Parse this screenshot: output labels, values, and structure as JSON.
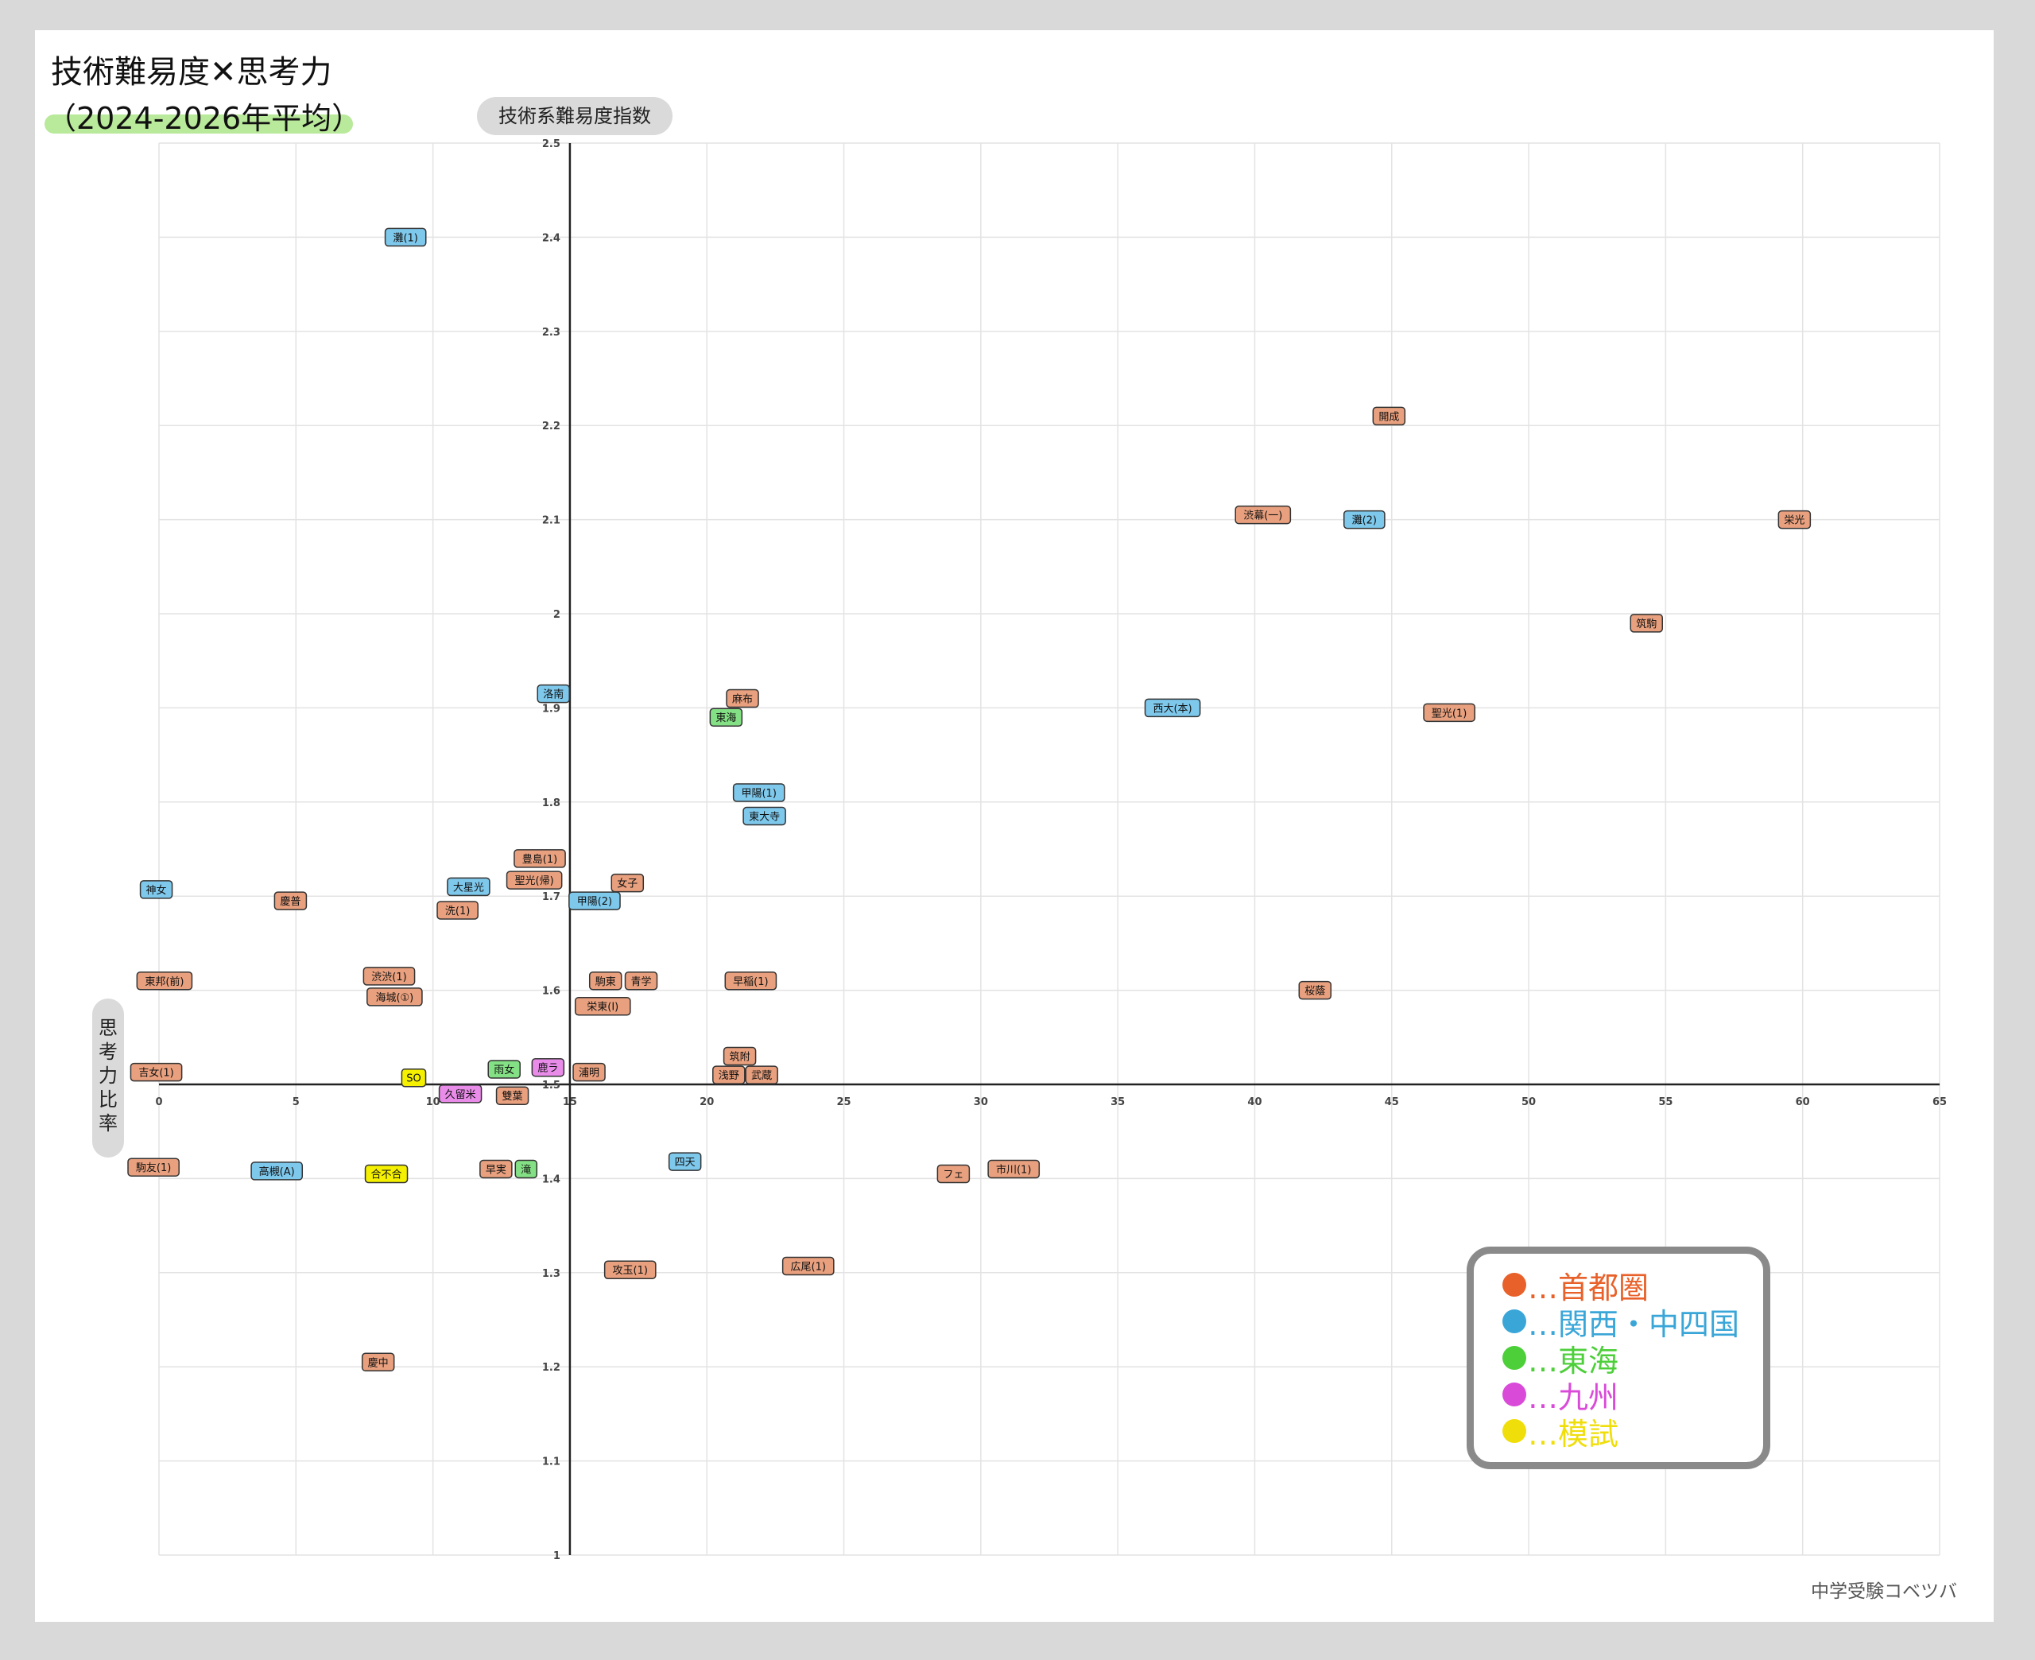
{
  "title": "技術難易度✕思考力",
  "subtitle": "（2024-2026年平均）",
  "watermark": "中学受験コベツバ",
  "colors": {
    "首都圏": "#e8a07e",
    "関西・中四国": "#7ec8ec",
    "東海": "#84e084",
    "九州": "#e98ce9",
    "模試": "#f5f000"
  },
  "legend": [
    {
      "label": "…首都圏",
      "dot": "#e8612a",
      "text": "#e8612a"
    },
    {
      "label": "…関西・中四国",
      "dot": "#3aa6d8",
      "text": "#3aa6d8"
    },
    {
      "label": "…東海",
      "dot": "#4dcf3a",
      "text": "#4dcf3a"
    },
    {
      "label": "…九州",
      "dot": "#d94ad9",
      "text": "#d94ad9"
    },
    {
      "label": "…模試",
      "dot": "#f0de0a",
      "text": "#f0de0a"
    }
  ],
  "chart_data": {
    "type": "scatter",
    "title": "技術難易度✕思考力",
    "subtitle": "（2024-2026年平均）",
    "xlabel": "技術系難易度指数",
    "ylabel": "思考力比率",
    "xlim": [
      0,
      65
    ],
    "ylim": [
      1,
      2.5
    ],
    "x_ticks": [
      0,
      5,
      10,
      15,
      20,
      25,
      30,
      35,
      40,
      45,
      50,
      55,
      60,
      65
    ],
    "y_ticks": [
      1,
      1.1,
      1.2,
      1.3,
      1.4,
      1.5,
      1.6,
      1.7,
      1.8,
      1.9,
      2,
      2.1,
      2.2,
      2.3,
      2.4,
      2.5
    ],
    "x_tick_labels": [
      "0",
      "5",
      "10",
      "15",
      "20",
      "25",
      "30",
      "35",
      "40",
      "45",
      "50",
      "55",
      "60",
      "65"
    ],
    "y_tick_labels": [
      "1",
      "1.1",
      "1.2",
      "1.3",
      "1.4",
      "1.5",
      "1.6",
      "1.7",
      "1.8",
      "1.9",
      "2",
      "2.1",
      "2.2",
      "2.3",
      "2.4",
      "2.5"
    ],
    "axis_cross": {
      "x": 15,
      "y": 1.5
    },
    "grid": true,
    "legend_position": "bottom-right",
    "points": [
      {
        "label": "灘(1)",
        "x": 9.0,
        "y": 2.4,
        "region": "関西・中四国"
      },
      {
        "label": "開成",
        "x": 44.9,
        "y": 2.21,
        "region": "首都圏"
      },
      {
        "label": "渋幕(一)",
        "x": 40.3,
        "y": 2.105,
        "region": "首都圏"
      },
      {
        "label": "灘(2)",
        "x": 44.0,
        "y": 2.1,
        "region": "関西・中四国"
      },
      {
        "label": "栄光",
        "x": 59.7,
        "y": 2.1,
        "region": "首都圏"
      },
      {
        "label": "筑駒",
        "x": 54.3,
        "y": 1.99,
        "region": "首都圏"
      },
      {
        "label": "洛南",
        "x": 14.4,
        "y": 1.915,
        "region": "関西・中四国"
      },
      {
        "label": "麻布",
        "x": 21.3,
        "y": 1.91,
        "region": "首都圏"
      },
      {
        "label": "東海",
        "x": 20.7,
        "y": 1.89,
        "region": "東海"
      },
      {
        "label": "西大(本)",
        "x": 37.0,
        "y": 1.9,
        "region": "関西・中四国"
      },
      {
        "label": "聖光(1)",
        "x": 47.1,
        "y": 1.895,
        "region": "首都圏"
      },
      {
        "label": "甲陽(1)",
        "x": 21.9,
        "y": 1.81,
        "region": "関西・中四国"
      },
      {
        "label": "東大寺",
        "x": 22.1,
        "y": 1.785,
        "region": "関西・中四国"
      },
      {
        "label": "豊島(1)",
        "x": 13.9,
        "y": 1.74,
        "region": "首都圏"
      },
      {
        "label": "聖光(帰)",
        "x": 13.7,
        "y": 1.717,
        "region": "首都圏"
      },
      {
        "label": "女子",
        "x": 17.1,
        "y": 1.714,
        "region": "首都圏"
      },
      {
        "label": "神女",
        "x": -0.1,
        "y": 1.707,
        "region": "関西・中四国"
      },
      {
        "label": "大星光",
        "x": 11.3,
        "y": 1.71,
        "region": "関西・中四国"
      },
      {
        "label": "慶普",
        "x": 4.8,
        "y": 1.695,
        "region": "首都圏"
      },
      {
        "label": "甲陽(2)",
        "x": 15.9,
        "y": 1.695,
        "region": "関西・中四国"
      },
      {
        "label": "洗(1)",
        "x": 10.9,
        "y": 1.685,
        "region": "首都圏"
      },
      {
        "label": "東邦(前)",
        "x": 0.2,
        "y": 1.61,
        "region": "首都圏"
      },
      {
        "label": "渋渋(1)",
        "x": 8.4,
        "y": 1.615,
        "region": "首都圏"
      },
      {
        "label": "駒東",
        "x": 16.3,
        "y": 1.61,
        "region": "首都圏"
      },
      {
        "label": "青学",
        "x": 17.6,
        "y": 1.61,
        "region": "首都圏"
      },
      {
        "label": "早稲(1)",
        "x": 21.6,
        "y": 1.61,
        "region": "首都圏"
      },
      {
        "label": "桜蔭",
        "x": 42.2,
        "y": 1.6,
        "region": "首都圏"
      },
      {
        "label": "海城(①)",
        "x": 8.6,
        "y": 1.593,
        "region": "首都圏"
      },
      {
        "label": "栄東(Ⅰ)",
        "x": 16.2,
        "y": 1.583,
        "region": "首都圏"
      },
      {
        "label": "筑附",
        "x": 21.2,
        "y": 1.53,
        "region": "首都圏"
      },
      {
        "label": "吉女(1)",
        "x": -0.1,
        "y": 1.513,
        "region": "首都圏"
      },
      {
        "label": "雨女",
        "x": 12.6,
        "y": 1.516,
        "region": "東海"
      },
      {
        "label": "鹿ラ",
        "x": 14.2,
        "y": 1.518,
        "region": "九州"
      },
      {
        "label": "浦明",
        "x": 15.7,
        "y": 1.513,
        "region": "首都圏"
      },
      {
        "label": "浅野",
        "x": 20.8,
        "y": 1.51,
        "region": "首都圏"
      },
      {
        "label": "武蔵",
        "x": 22.0,
        "y": 1.51,
        "region": "首都圏"
      },
      {
        "label": "SO",
        "x": 9.3,
        "y": 1.507,
        "region": "模試"
      },
      {
        "label": "久留米",
        "x": 11.0,
        "y": 1.49,
        "region": "九州"
      },
      {
        "label": "雙葉",
        "x": 12.9,
        "y": 1.488,
        "region": "首都圏"
      },
      {
        "label": "四天",
        "x": 19.2,
        "y": 1.418,
        "region": "関西・中四国"
      },
      {
        "label": "駒友(1)",
        "x": -0.2,
        "y": 1.412,
        "region": "首都圏"
      },
      {
        "label": "早実",
        "x": 12.3,
        "y": 1.41,
        "region": "首都圏"
      },
      {
        "label": "滝",
        "x": 13.4,
        "y": 1.41,
        "region": "東海"
      },
      {
        "label": "市川(1)",
        "x": 31.2,
        "y": 1.41,
        "region": "首都圏"
      },
      {
        "label": "高槻(A)",
        "x": 4.3,
        "y": 1.408,
        "region": "関西・中四国"
      },
      {
        "label": "合不合",
        "x": 8.3,
        "y": 1.405,
        "region": "模試"
      },
      {
        "label": "フェ",
        "x": 29.0,
        "y": 1.405,
        "region": "首都圏"
      },
      {
        "label": "広尾(1)",
        "x": 23.7,
        "y": 1.307,
        "region": "首都圏"
      },
      {
        "label": "攻玉(1)",
        "x": 17.2,
        "y": 1.303,
        "region": "首都圏"
      },
      {
        "label": "慶中",
        "x": 8.0,
        "y": 1.205,
        "region": "首都圏"
      }
    ]
  }
}
